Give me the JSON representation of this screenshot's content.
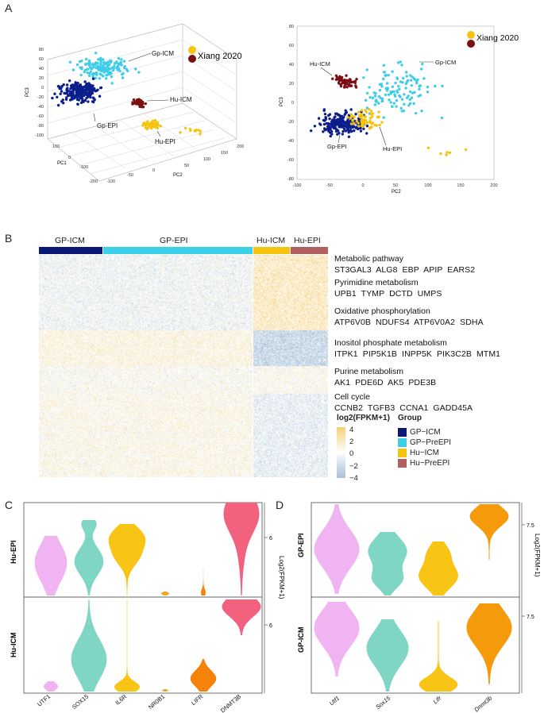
{
  "panels": {
    "a": "A",
    "b": "B",
    "c": "C",
    "d": "D"
  },
  "panel_a": {
    "legend_label": "Xiang 2020",
    "colors": {
      "gp_icm": "#3ecde8",
      "gp_epi": "#0c1e8c",
      "hu_icm": "#7a0f14",
      "hu_epi": "#f5c40f"
    },
    "left": {
      "labels": {
        "gp_icm": "Gp-ICM",
        "hu_icm": "Hu-ICM",
        "gp_epi": "Gp-EPI",
        "hu_epi": "Hu-EPI"
      },
      "axes": {
        "pc3": "PC3",
        "pc1": "PC1",
        "pc2": "PC2"
      },
      "pc3_ticks": [
        "80",
        "60",
        "40",
        "20",
        "0",
        "-20",
        "-40",
        "-60",
        "-80",
        "-100"
      ],
      "pc1_ticks": [
        "100",
        "0",
        "-100",
        "-200"
      ],
      "pc2_ticks": [
        "-100",
        "-50",
        "0",
        "50",
        "100",
        "150",
        "200"
      ]
    },
    "right": {
      "labels": {
        "hu_icm": "Hu-ICM",
        "gp_icm": "Gp-ICM",
        "gp_epi": "Gp-EPI",
        "hu_epi": "Hu-EPI"
      },
      "axes": {
        "pc3": "PC3",
        "pc2": "PC2"
      },
      "y_ticks": [
        "80",
        "60",
        "40",
        "20",
        "0",
        "-20",
        "-40",
        "-60",
        "-80"
      ],
      "x_ticks": [
        "-100",
        "-50",
        "0",
        "50",
        "100",
        "150",
        "200"
      ]
    }
  },
  "panel_b": {
    "groups": [
      {
        "label": "GP-ICM",
        "color": "#0c1875"
      },
      {
        "label": "GP-EPI",
        "color": "#3ccfe8"
      },
      {
        "label": "Hu-ICM",
        "color": "#f5c40f"
      },
      {
        "label": "Hu-EPI",
        "color": "#b06060"
      }
    ],
    "pathways": [
      {
        "title": "Metabolic pathway",
        "genes": "ST3GAL3  ALG8  EBP  APIP  EARS2"
      },
      {
        "title": "Pyrimidine metabolism",
        "genes": "UPB1  TYMP  DCTD  UMPS"
      },
      {
        "title": "Oxidative phosphorylation",
        "genes": "ATP6V0B  NDUFS4  ATP6V0A2  SDHA"
      },
      {
        "title": "Inositol phosphate metabolism",
        "genes": "ITPK1  PIP5K1B  INPP5K  PIK3C2B  MTM1"
      },
      {
        "title": "Purine metabolism",
        "genes": "AK1  PDE6D  AK5  PDE3B"
      },
      {
        "title": "Cell cycle",
        "genes": "CCNB2  TGFB3  CCNA1  GADD45A"
      }
    ],
    "colorbar_title": "log2(FPKM+1)",
    "colorbar_ticks": [
      "4",
      "2",
      "0",
      "−2",
      "−4"
    ],
    "group_title": "Group",
    "group_legend": [
      {
        "label": "GP−ICM",
        "color": "#0c1875"
      },
      {
        "label": "GP−PreEPI",
        "color": "#3ccfe8"
      },
      {
        "label": "Hu−ICM",
        "color": "#f5c40f"
      },
      {
        "label": "Hu−PreEPI",
        "color": "#b06060"
      }
    ]
  },
  "panel_c": {
    "row_labels": [
      "Hu-EPI",
      "Hu-ICM"
    ],
    "genes": [
      "UTF1",
      "SOX15",
      "IL6R",
      "NR0B1",
      "LIFR",
      "DNMT3B"
    ],
    "colors": [
      "#f0b4f2",
      "#7fd6c4",
      "#f8c416",
      "#f5a81c",
      "#f5830a",
      "#f2617e"
    ],
    "y_tick": "6",
    "y_label": "Log2(FPKM+1)"
  },
  "panel_d": {
    "row_labels": [
      "GP-EPI",
      "GP-ICM"
    ],
    "genes": [
      "Utf1",
      "Sox15",
      "Lifr",
      "Dnmt3b"
    ],
    "colors": [
      "#f0b4f2",
      "#7fd6c4",
      "#f8c416",
      "#f59a0a"
    ],
    "y_tick": "7.5",
    "y_label": "Log2(FPKM+1)"
  }
}
